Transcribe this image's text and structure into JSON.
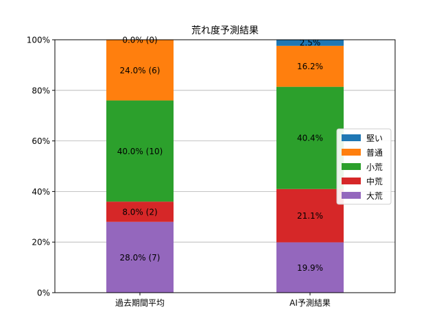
{
  "chart_data": {
    "type": "bar",
    "stacked": true,
    "percent": true,
    "title": "荒れ度予測結果",
    "xlabel": "",
    "ylabel": "",
    "ylim": [
      0,
      100
    ],
    "yticks": [
      0,
      20,
      40,
      60,
      80,
      100
    ],
    "ytick_labels": [
      "0%",
      "20%",
      "40%",
      "60%",
      "80%",
      "100%"
    ],
    "grid": "y",
    "legend_position": "right",
    "categories": [
      "過去期間平均",
      "AI予測結果"
    ],
    "series": [
      {
        "name": "大荒",
        "color": "#9467bd",
        "values": [
          28.0,
          19.9
        ],
        "labels": [
          "28.0% (7)",
          "19.9%"
        ]
      },
      {
        "name": "中荒",
        "color": "#d62728",
        "values": [
          8.0,
          21.1
        ],
        "labels": [
          "8.0% (2)",
          "21.1%"
        ]
      },
      {
        "name": "小荒",
        "color": "#2ca02c",
        "values": [
          40.0,
          40.4
        ],
        "labels": [
          "40.0% (10)",
          "40.4%"
        ]
      },
      {
        "name": "普通",
        "color": "#ff7f0e",
        "values": [
          24.0,
          16.2
        ],
        "labels": [
          "24.0% (6)",
          "16.2%"
        ]
      },
      {
        "name": "堅い",
        "color": "#1f77b4",
        "values": [
          0.0,
          2.5
        ],
        "labels": [
          "0.0% (0)",
          "2.5%"
        ]
      }
    ],
    "legend_order": [
      "堅い",
      "普通",
      "小荒",
      "中荒",
      "大荒"
    ]
  }
}
